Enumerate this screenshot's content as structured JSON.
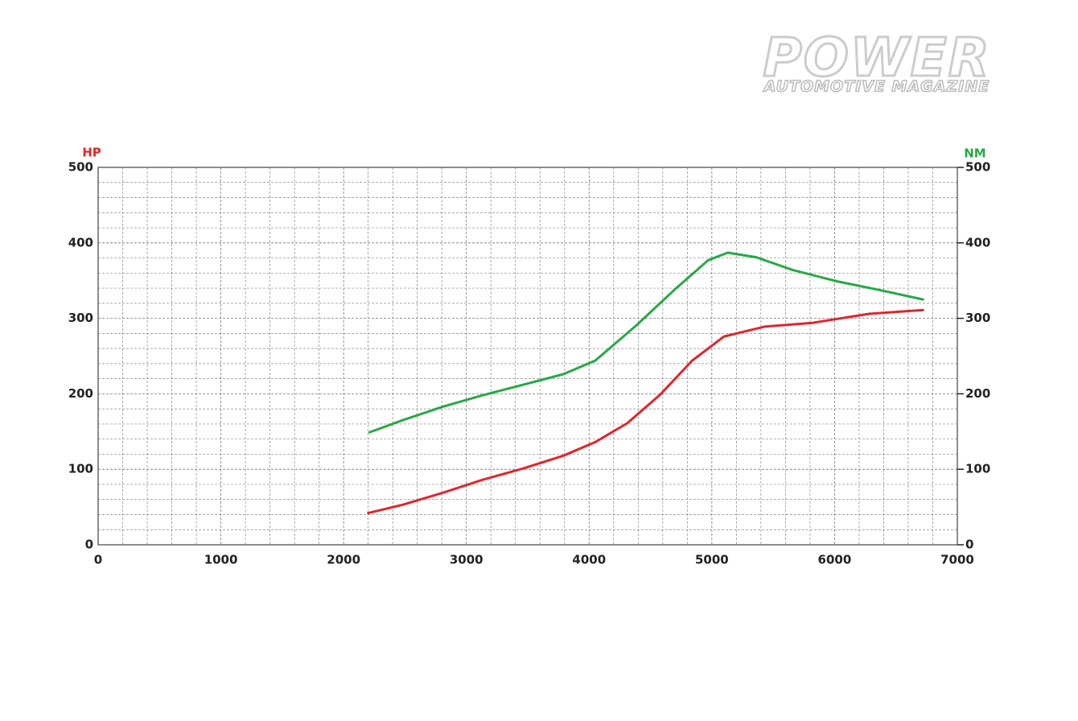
{
  "logo": {
    "title": "POWER",
    "subtitle": "AUTOMOTIVE MAGAZINE"
  },
  "chart_data": {
    "type": "line",
    "ylabel": "HP",
    "y2label": "NM",
    "xlim": [
      0,
      7000
    ],
    "xticks": [
      0,
      1000,
      2000,
      3000,
      4000,
      5000,
      6000,
      7000
    ],
    "ylim": [
      0,
      500
    ],
    "yticks": [
      0,
      100,
      200,
      300,
      400,
      500
    ],
    "y2lim": [
      0,
      500
    ],
    "y2ticks": [
      0,
      100,
      200,
      300,
      400,
      500
    ],
    "grid": true,
    "series": [
      {
        "name": "HP",
        "color": "#e0262b",
        "x": [
          2200,
          2480,
          2810,
          3130,
          3460,
          3790,
          4050,
          4310,
          4580,
          4840,
          5100,
          5430,
          5820,
          6280,
          6720
        ],
        "values": [
          42,
          53,
          69,
          86,
          101,
          118,
          136,
          161,
          199,
          244,
          276,
          289,
          294,
          306,
          311
        ]
      },
      {
        "name": "NM",
        "color": "#27a844",
        "axis": "y2",
        "x": [
          2210,
          2480,
          2810,
          3130,
          3460,
          3790,
          4050,
          4380,
          4710,
          4970,
          5130,
          5360,
          5660,
          6020,
          6410,
          6720
        ],
        "values": [
          149,
          165,
          183,
          198,
          212,
          226,
          244,
          290,
          340,
          377,
          387,
          381,
          364,
          349,
          336,
          325
        ]
      }
    ]
  }
}
